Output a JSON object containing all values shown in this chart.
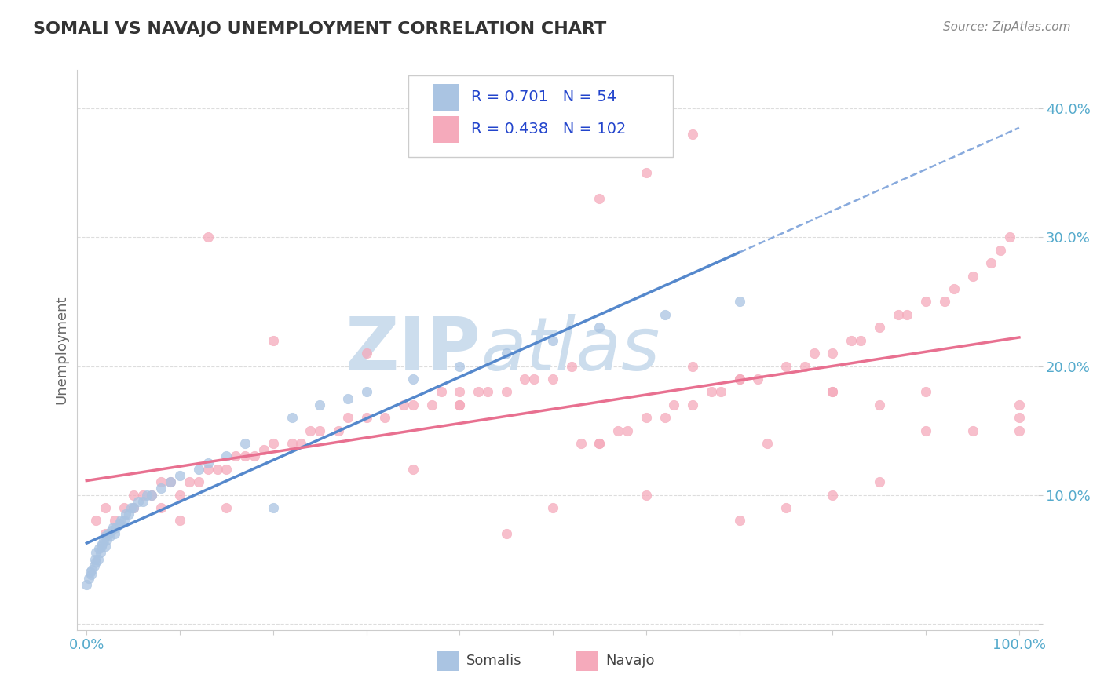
{
  "title": "SOMALI VS NAVAJO UNEMPLOYMENT CORRELATION CHART",
  "source_text": "Source: ZipAtlas.com",
  "ylabel": "Unemployment",
  "xlim": [
    -0.01,
    1.02
  ],
  "ylim": [
    -0.005,
    0.43
  ],
  "somali_R": 0.701,
  "somali_N": 54,
  "navajo_R": 0.438,
  "navajo_N": 102,
  "somali_color": "#aac4e2",
  "navajo_color": "#f5aabb",
  "somali_line_color": "#5588cc",
  "navajo_line_color": "#e87090",
  "somali_dashed_color": "#88aadd",
  "background_color": "#ffffff",
  "watermark_color": "#ccdded",
  "legend_box_color": "#cccccc",
  "tick_color": "#55aacc",
  "somali_scatter_x": [
    0.0,
    0.002,
    0.004,
    0.005,
    0.006,
    0.008,
    0.009,
    0.01,
    0.01,
    0.012,
    0.013,
    0.015,
    0.016,
    0.017,
    0.018,
    0.02,
    0.02,
    0.022,
    0.023,
    0.025,
    0.027,
    0.028,
    0.03,
    0.032,
    0.035,
    0.037,
    0.04,
    0.042,
    0.045,
    0.048,
    0.05,
    0.055,
    0.06,
    0.065,
    0.07,
    0.08,
    0.09,
    0.1,
    0.12,
    0.13,
    0.15,
    0.17,
    0.2,
    0.22,
    0.25,
    0.28,
    0.3,
    0.35,
    0.4,
    0.45,
    0.5,
    0.55,
    0.62,
    0.7
  ],
  "somali_scatter_y": [
    0.03,
    0.035,
    0.04,
    0.038,
    0.042,
    0.045,
    0.05,
    0.048,
    0.055,
    0.05,
    0.058,
    0.055,
    0.06,
    0.062,
    0.065,
    0.06,
    0.068,
    0.065,
    0.07,
    0.068,
    0.072,
    0.075,
    0.07,
    0.075,
    0.078,
    0.08,
    0.08,
    0.085,
    0.085,
    0.09,
    0.09,
    0.095,
    0.095,
    0.1,
    0.1,
    0.105,
    0.11,
    0.115,
    0.12,
    0.125,
    0.13,
    0.14,
    0.09,
    0.16,
    0.17,
    0.175,
    0.18,
    0.19,
    0.2,
    0.21,
    0.22,
    0.23,
    0.24,
    0.25
  ],
  "navajo_scatter_x": [
    0.01,
    0.02,
    0.02,
    0.03,
    0.04,
    0.05,
    0.05,
    0.06,
    0.07,
    0.08,
    0.08,
    0.09,
    0.1,
    0.11,
    0.12,
    0.13,
    0.14,
    0.15,
    0.16,
    0.17,
    0.18,
    0.19,
    0.2,
    0.22,
    0.23,
    0.24,
    0.25,
    0.27,
    0.28,
    0.3,
    0.32,
    0.34,
    0.35,
    0.37,
    0.38,
    0.4,
    0.4,
    0.42,
    0.43,
    0.45,
    0.47,
    0.48,
    0.5,
    0.52,
    0.53,
    0.55,
    0.57,
    0.58,
    0.6,
    0.62,
    0.63,
    0.65,
    0.67,
    0.68,
    0.7,
    0.72,
    0.73,
    0.75,
    0.77,
    0.78,
    0.8,
    0.8,
    0.82,
    0.83,
    0.85,
    0.85,
    0.87,
    0.88,
    0.9,
    0.9,
    0.92,
    0.93,
    0.95,
    0.95,
    0.97,
    0.98,
    0.99,
    1.0,
    1.0,
    1.0,
    0.13,
    0.4,
    0.55,
    0.6,
    0.65,
    0.1,
    0.15,
    0.7,
    0.45,
    0.55,
    0.75,
    0.8,
    0.35,
    0.5,
    0.6,
    0.85,
    0.2,
    0.3,
    0.65,
    0.7,
    0.8,
    0.9
  ],
  "navajo_scatter_y": [
    0.08,
    0.07,
    0.09,
    0.08,
    0.09,
    0.09,
    0.1,
    0.1,
    0.1,
    0.09,
    0.11,
    0.11,
    0.1,
    0.11,
    0.11,
    0.12,
    0.12,
    0.12,
    0.13,
    0.13,
    0.13,
    0.135,
    0.14,
    0.14,
    0.14,
    0.15,
    0.15,
    0.15,
    0.16,
    0.16,
    0.16,
    0.17,
    0.17,
    0.17,
    0.18,
    0.17,
    0.18,
    0.18,
    0.18,
    0.18,
    0.19,
    0.19,
    0.19,
    0.2,
    0.14,
    0.14,
    0.15,
    0.15,
    0.16,
    0.16,
    0.17,
    0.17,
    0.18,
    0.18,
    0.19,
    0.19,
    0.14,
    0.2,
    0.2,
    0.21,
    0.21,
    0.18,
    0.22,
    0.22,
    0.23,
    0.17,
    0.24,
    0.24,
    0.25,
    0.15,
    0.25,
    0.26,
    0.27,
    0.15,
    0.28,
    0.29,
    0.3,
    0.15,
    0.16,
    0.17,
    0.3,
    0.17,
    0.33,
    0.35,
    0.38,
    0.08,
    0.09,
    0.08,
    0.07,
    0.14,
    0.09,
    0.1,
    0.12,
    0.09,
    0.1,
    0.11,
    0.22,
    0.21,
    0.2,
    0.19,
    0.18,
    0.18
  ]
}
